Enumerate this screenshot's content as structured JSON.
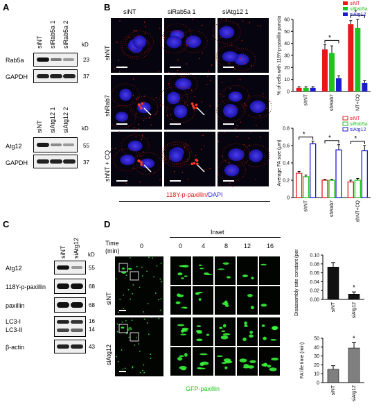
{
  "panel_letters": {
    "a": "A",
    "b": "B",
    "c": "C",
    "d": "D"
  },
  "kd_label": "kD",
  "blot_a1": {
    "lanes": [
      "siNT",
      "siRab5a 1",
      "siRab5a 2"
    ],
    "rows": [
      {
        "label": "Rab5a",
        "kd": "23"
      },
      {
        "label": "GAPDH",
        "kd": "37"
      }
    ]
  },
  "blot_a2": {
    "lanes": [
      "siNT",
      "siAtg12 1",
      "siAtg12 2"
    ],
    "rows": [
      {
        "label": "Atg12",
        "kd": "55"
      },
      {
        "label": "GAPDH",
        "kd": "37"
      }
    ]
  },
  "panel_b": {
    "cols": [
      "siNT",
      "siRab5a 1",
      "siAtg12 1"
    ],
    "rows": [
      "shNT",
      "shRab7",
      "shNT + CQ"
    ],
    "stain_red": "118Y-p-paxillin/",
    "stain_blue": "DAPI"
  },
  "blot_c": {
    "lanes": [
      "siNT",
      "siAtg12"
    ],
    "rows": [
      {
        "label": "Atg12",
        "kd": "55"
      },
      {
        "label": "118Y-p-paxillin",
        "kd": "68"
      },
      {
        "label": "paxillin",
        "kd": "68"
      },
      {
        "label": "LC3-I",
        "kd": "16"
      },
      {
        "label": "LC3-II",
        "kd": "14"
      },
      {
        "label": "β-actin",
        "kd": "43"
      }
    ]
  },
  "panel_d": {
    "time_label": "Time",
    "time_unit": "(min)",
    "overview_time": "0",
    "inset_label": "Inset",
    "inset_times": [
      "0",
      "4",
      "8",
      "12",
      "16"
    ],
    "rows": [
      "siNT",
      "siAtg12"
    ],
    "stain": "GFP-paxillin"
  },
  "colors": {
    "siNT": "#e8171b",
    "siRab5a": "#1fc41f",
    "siAtg12": "#1b1bd6",
    "gray_bar": "#7f7f7f",
    "black_bar": "#111111"
  },
  "chart_data": [
    {
      "type": "bar",
      "ylabel": "% of cells with 118Y-p-paxillin puncta",
      "categories": [
        "shNT",
        "shRab7",
        "shNT+CQ"
      ],
      "series": [
        {
          "name": "siNT",
          "values": [
            3,
            35,
            56
          ]
        },
        {
          "name": "siRab5a",
          "values": [
            3,
            32,
            53
          ]
        },
        {
          "name": "siAtg12",
          "values": [
            3,
            11,
            7
          ]
        }
      ],
      "errors": [
        [
          1,
          4,
          3
        ],
        [
          1,
          6,
          7
        ],
        [
          1,
          2,
          2
        ]
      ],
      "ylim": [
        0,
        60
      ],
      "yticks": [
        "0",
        "10",
        "20",
        "30",
        "40",
        "50",
        "60"
      ],
      "legend": "top-right",
      "significance": [
        "*",
        "*"
      ]
    },
    {
      "type": "bar",
      "ylabel": "Average FA size (μm)",
      "categories": [
        "shNT",
        "shRab7",
        "shNT+CQ"
      ],
      "series": [
        {
          "name": "siNT",
          "values": [
            0.28,
            0.2,
            0.18
          ]
        },
        {
          "name": "siRab5a",
          "values": [
            0.24,
            0.2,
            0.2
          ]
        },
        {
          "name": "siAtg12",
          "values": [
            0.62,
            0.55,
            0.54
          ]
        }
      ],
      "errors": [
        [
          0.02,
          0.01,
          0.02
        ],
        [
          0.02,
          0.01,
          0.02
        ],
        [
          0.03,
          0.06,
          0.06
        ]
      ],
      "ylim": [
        0,
        0.8
      ],
      "yticks": [
        "0",
        "0.2",
        "0.4",
        "0.6",
        "0.8"
      ],
      "legend": "top-right",
      "significance": [
        "*",
        "*",
        "*"
      ]
    },
    {
      "type": "bar",
      "ylabel": "Disassembly rate constant (per min)",
      "categories": [
        "siNT",
        "siAtg12"
      ],
      "values": [
        0.073,
        0.012
      ],
      "errors": [
        0.01,
        0.005
      ],
      "ylim": [
        0,
        0.1
      ],
      "yticks": [
        "0.00",
        "0.02",
        "0.04",
        "0.06",
        "0.08",
        "0.10"
      ],
      "significance": [
        "*"
      ]
    },
    {
      "type": "bar",
      "ylabel": "FA life time (min)",
      "categories": [
        "siNT",
        "siAtg12"
      ],
      "values": [
        15,
        39
      ],
      "errors": [
        4,
        6
      ],
      "ylim": [
        0,
        50
      ],
      "yticks": [
        "0",
        "10",
        "20",
        "30",
        "40",
        "50"
      ],
      "significance": [
        "*"
      ]
    }
  ]
}
